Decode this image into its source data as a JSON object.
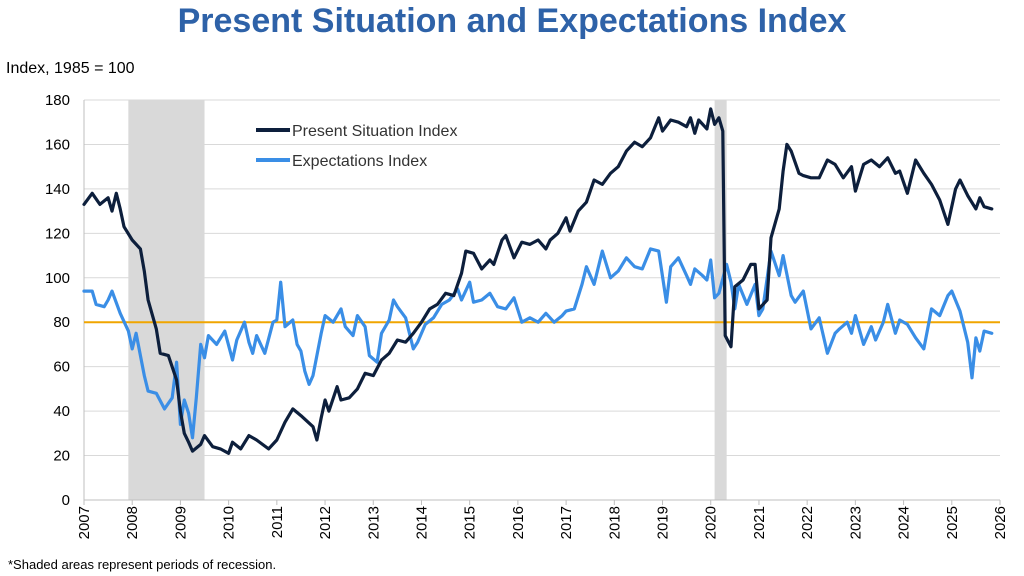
{
  "header": {
    "title": "Present Situation and Expectations Index",
    "y_unit": "Index, 1985 = 100",
    "footnote": "*Shaded areas represent periods of recession."
  },
  "chart_data": {
    "type": "line",
    "title": "Present Situation and Expectations Index",
    "xlabel": "",
    "ylabel": "Index, 1985 = 100",
    "xlim": [
      2007,
      2026
    ],
    "ylim": [
      0,
      180
    ],
    "x_ticks": [
      "2007",
      "2008",
      "2009",
      "2010",
      "2011",
      "2012",
      "2013",
      "2014",
      "2015",
      "2016",
      "2017",
      "2018",
      "2019",
      "2020",
      "2021",
      "2022",
      "2023",
      "2024",
      "2025",
      "2026"
    ],
    "y_ticks": [
      0,
      20,
      40,
      60,
      80,
      100,
      120,
      140,
      160,
      180
    ],
    "grid": "horizontal",
    "legend_position": "top-left",
    "reference_line": {
      "y": 80,
      "color": "#f0a500"
    },
    "recessions": [
      [
        2007.92,
        2009.5
      ],
      [
        2020.08,
        2020.33
      ]
    ],
    "series": [
      {
        "name": "Present Situation Index",
        "color": "#0d1f3c",
        "points": [
          [
            2007.0,
            133
          ],
          [
            2007.17,
            138
          ],
          [
            2007.33,
            133
          ],
          [
            2007.5,
            136
          ],
          [
            2007.58,
            130
          ],
          [
            2007.67,
            138
          ],
          [
            2007.75,
            131
          ],
          [
            2007.83,
            123
          ],
          [
            2008.0,
            117
          ],
          [
            2008.17,
            113
          ],
          [
            2008.25,
            103
          ],
          [
            2008.33,
            90
          ],
          [
            2008.5,
            77
          ],
          [
            2008.58,
            66
          ],
          [
            2008.75,
            65
          ],
          [
            2008.92,
            54
          ],
          [
            2009.0,
            40
          ],
          [
            2009.08,
            30
          ],
          [
            2009.17,
            26
          ],
          [
            2009.25,
            22
          ],
          [
            2009.42,
            25
          ],
          [
            2009.5,
            29
          ],
          [
            2009.67,
            24
          ],
          [
            2009.83,
            23
          ],
          [
            2010.0,
            21
          ],
          [
            2010.08,
            26
          ],
          [
            2010.25,
            23
          ],
          [
            2010.42,
            29
          ],
          [
            2010.58,
            27
          ],
          [
            2010.83,
            23
          ],
          [
            2011.0,
            27
          ],
          [
            2011.17,
            35
          ],
          [
            2011.33,
            41
          ],
          [
            2011.5,
            38
          ],
          [
            2011.75,
            33
          ],
          [
            2011.83,
            27
          ],
          [
            2011.92,
            37
          ],
          [
            2012.0,
            45
          ],
          [
            2012.08,
            40
          ],
          [
            2012.25,
            51
          ],
          [
            2012.33,
            45
          ],
          [
            2012.5,
            46
          ],
          [
            2012.67,
            50
          ],
          [
            2012.83,
            57
          ],
          [
            2013.0,
            56
          ],
          [
            2013.17,
            63
          ],
          [
            2013.33,
            66
          ],
          [
            2013.5,
            72
          ],
          [
            2013.67,
            71
          ],
          [
            2013.83,
            75
          ],
          [
            2014.0,
            80
          ],
          [
            2014.17,
            86
          ],
          [
            2014.33,
            88
          ],
          [
            2014.5,
            93
          ],
          [
            2014.67,
            92
          ],
          [
            2014.83,
            102
          ],
          [
            2014.92,
            112
          ],
          [
            2015.08,
            111
          ],
          [
            2015.25,
            104
          ],
          [
            2015.42,
            108
          ],
          [
            2015.5,
            106
          ],
          [
            2015.67,
            117
          ],
          [
            2015.75,
            119
          ],
          [
            2015.92,
            109
          ],
          [
            2016.08,
            116
          ],
          [
            2016.25,
            115
          ],
          [
            2016.42,
            117
          ],
          [
            2016.58,
            113
          ],
          [
            2016.67,
            117
          ],
          [
            2016.83,
            120
          ],
          [
            2017.0,
            127
          ],
          [
            2017.08,
            121
          ],
          [
            2017.25,
            130
          ],
          [
            2017.42,
            134
          ],
          [
            2017.58,
            144
          ],
          [
            2017.75,
            142
          ],
          [
            2017.92,
            147
          ],
          [
            2018.08,
            150
          ],
          [
            2018.25,
            157
          ],
          [
            2018.42,
            161
          ],
          [
            2018.58,
            159
          ],
          [
            2018.75,
            163
          ],
          [
            2018.92,
            172
          ],
          [
            2019.0,
            166
          ],
          [
            2019.17,
            171
          ],
          [
            2019.33,
            170
          ],
          [
            2019.5,
            168
          ],
          [
            2019.58,
            172
          ],
          [
            2019.67,
            165
          ],
          [
            2019.75,
            171
          ],
          [
            2019.92,
            167
          ],
          [
            2020.0,
            176
          ],
          [
            2020.08,
            169
          ],
          [
            2020.17,
            172
          ],
          [
            2020.25,
            166
          ],
          [
            2020.3,
            74
          ],
          [
            2020.42,
            69
          ],
          [
            2020.5,
            96
          ],
          [
            2020.67,
            99
          ],
          [
            2020.83,
            106
          ],
          [
            2020.92,
            106
          ],
          [
            2021.0,
            86
          ],
          [
            2021.17,
            90
          ],
          [
            2021.25,
            118
          ],
          [
            2021.42,
            131
          ],
          [
            2021.5,
            148
          ],
          [
            2021.58,
            160
          ],
          [
            2021.67,
            157
          ],
          [
            2021.83,
            147
          ],
          [
            2021.92,
            146
          ],
          [
            2022.08,
            145
          ],
          [
            2022.25,
            145
          ],
          [
            2022.42,
            153
          ],
          [
            2022.58,
            151
          ],
          [
            2022.75,
            145
          ],
          [
            2022.92,
            150
          ],
          [
            2023.0,
            139
          ],
          [
            2023.17,
            151
          ],
          [
            2023.33,
            153
          ],
          [
            2023.5,
            150
          ],
          [
            2023.67,
            154
          ],
          [
            2023.83,
            147
          ],
          [
            2023.92,
            148
          ],
          [
            2024.08,
            138
          ],
          [
            2024.25,
            153
          ],
          [
            2024.42,
            147
          ],
          [
            2024.58,
            142
          ],
          [
            2024.75,
            135
          ],
          [
            2024.92,
            124
          ],
          [
            2025.08,
            140
          ],
          [
            2025.17,
            144
          ],
          [
            2025.33,
            137
          ],
          [
            2025.5,
            131
          ],
          [
            2025.58,
            136
          ],
          [
            2025.67,
            132
          ],
          [
            2025.83,
            131
          ]
        ]
      },
      {
        "name": "Expectations Index",
        "color": "#3a8ee6",
        "points": [
          [
            2007.0,
            94
          ],
          [
            2007.17,
            94
          ],
          [
            2007.25,
            88
          ],
          [
            2007.42,
            87
          ],
          [
            2007.5,
            90
          ],
          [
            2007.58,
            94
          ],
          [
            2007.75,
            84
          ],
          [
            2007.92,
            76
          ],
          [
            2008.0,
            68
          ],
          [
            2008.08,
            75
          ],
          [
            2008.25,
            56
          ],
          [
            2008.33,
            49
          ],
          [
            2008.5,
            48
          ],
          [
            2008.67,
            41
          ],
          [
            2008.83,
            46
          ],
          [
            2008.92,
            62
          ],
          [
            2009.0,
            34
          ],
          [
            2009.08,
            45
          ],
          [
            2009.17,
            39
          ],
          [
            2009.25,
            28
          ],
          [
            2009.33,
            46
          ],
          [
            2009.42,
            70
          ],
          [
            2009.5,
            64
          ],
          [
            2009.58,
            74
          ],
          [
            2009.75,
            70
          ],
          [
            2009.92,
            76
          ],
          [
            2010.08,
            63
          ],
          [
            2010.17,
            72
          ],
          [
            2010.33,
            80
          ],
          [
            2010.42,
            71
          ],
          [
            2010.5,
            66
          ],
          [
            2010.58,
            74
          ],
          [
            2010.75,
            66
          ],
          [
            2010.92,
            80
          ],
          [
            2011.0,
            81
          ],
          [
            2011.08,
            98
          ],
          [
            2011.17,
            78
          ],
          [
            2011.33,
            81
          ],
          [
            2011.42,
            70
          ],
          [
            2011.5,
            67
          ],
          [
            2011.58,
            58
          ],
          [
            2011.67,
            52
          ],
          [
            2011.75,
            56
          ],
          [
            2011.92,
            75
          ],
          [
            2012.0,
            83
          ],
          [
            2012.17,
            80
          ],
          [
            2012.33,
            86
          ],
          [
            2012.42,
            78
          ],
          [
            2012.58,
            74
          ],
          [
            2012.67,
            83
          ],
          [
            2012.83,
            78
          ],
          [
            2012.92,
            65
          ],
          [
            2013.08,
            62
          ],
          [
            2013.17,
            75
          ],
          [
            2013.33,
            81
          ],
          [
            2013.42,
            90
          ],
          [
            2013.5,
            87
          ],
          [
            2013.67,
            82
          ],
          [
            2013.83,
            68
          ],
          [
            2013.92,
            71
          ],
          [
            2014.08,
            79
          ],
          [
            2014.25,
            82
          ],
          [
            2014.42,
            88
          ],
          [
            2014.58,
            90
          ],
          [
            2014.75,
            95
          ],
          [
            2014.83,
            90
          ],
          [
            2015.0,
            98
          ],
          [
            2015.08,
            89
          ],
          [
            2015.25,
            90
          ],
          [
            2015.42,
            93
          ],
          [
            2015.58,
            87
          ],
          [
            2015.75,
            86
          ],
          [
            2015.92,
            91
          ],
          [
            2016.08,
            80
          ],
          [
            2016.25,
            82
          ],
          [
            2016.42,
            80
          ],
          [
            2016.58,
            84
          ],
          [
            2016.75,
            80
          ],
          [
            2016.92,
            83
          ],
          [
            2017.0,
            85
          ],
          [
            2017.17,
            86
          ],
          [
            2017.33,
            97
          ],
          [
            2017.42,
            105
          ],
          [
            2017.58,
            97
          ],
          [
            2017.75,
            112
          ],
          [
            2017.92,
            100
          ],
          [
            2018.08,
            103
          ],
          [
            2018.25,
            109
          ],
          [
            2018.42,
            105
          ],
          [
            2018.58,
            104
          ],
          [
            2018.75,
            113
          ],
          [
            2018.92,
            112
          ],
          [
            2019.08,
            89
          ],
          [
            2019.17,
            105
          ],
          [
            2019.33,
            109
          ],
          [
            2019.5,
            101
          ],
          [
            2019.58,
            97
          ],
          [
            2019.67,
            104
          ],
          [
            2019.83,
            101
          ],
          [
            2019.92,
            99
          ],
          [
            2020.0,
            108
          ],
          [
            2020.08,
            91
          ],
          [
            2020.17,
            93
          ],
          [
            2020.33,
            106
          ],
          [
            2020.42,
            98
          ],
          [
            2020.5,
            86
          ],
          [
            2020.58,
            97
          ],
          [
            2020.75,
            88
          ],
          [
            2020.92,
            97
          ],
          [
            2021.0,
            83
          ],
          [
            2021.08,
            86
          ],
          [
            2021.25,
            112
          ],
          [
            2021.42,
            101
          ],
          [
            2021.5,
            110
          ],
          [
            2021.67,
            92
          ],
          [
            2021.75,
            89
          ],
          [
            2021.92,
            94
          ],
          [
            2022.08,
            77
          ],
          [
            2022.25,
            82
          ],
          [
            2022.42,
            66
          ],
          [
            2022.58,
            75
          ],
          [
            2022.67,
            77
          ],
          [
            2022.83,
            80
          ],
          [
            2022.92,
            75
          ],
          [
            2023.0,
            83
          ],
          [
            2023.17,
            70
          ],
          [
            2023.33,
            78
          ],
          [
            2023.42,
            72
          ],
          [
            2023.58,
            80
          ],
          [
            2023.67,
            88
          ],
          [
            2023.83,
            75
          ],
          [
            2023.92,
            81
          ],
          [
            2024.08,
            79
          ],
          [
            2024.25,
            73
          ],
          [
            2024.42,
            68
          ],
          [
            2024.58,
            86
          ],
          [
            2024.75,
            83
          ],
          [
            2024.92,
            92
          ],
          [
            2025.0,
            94
          ],
          [
            2025.17,
            85
          ],
          [
            2025.33,
            71
          ],
          [
            2025.42,
            55
          ],
          [
            2025.5,
            73
          ],
          [
            2025.58,
            67
          ],
          [
            2025.67,
            76
          ],
          [
            2025.83,
            75
          ]
        ]
      }
    ]
  }
}
